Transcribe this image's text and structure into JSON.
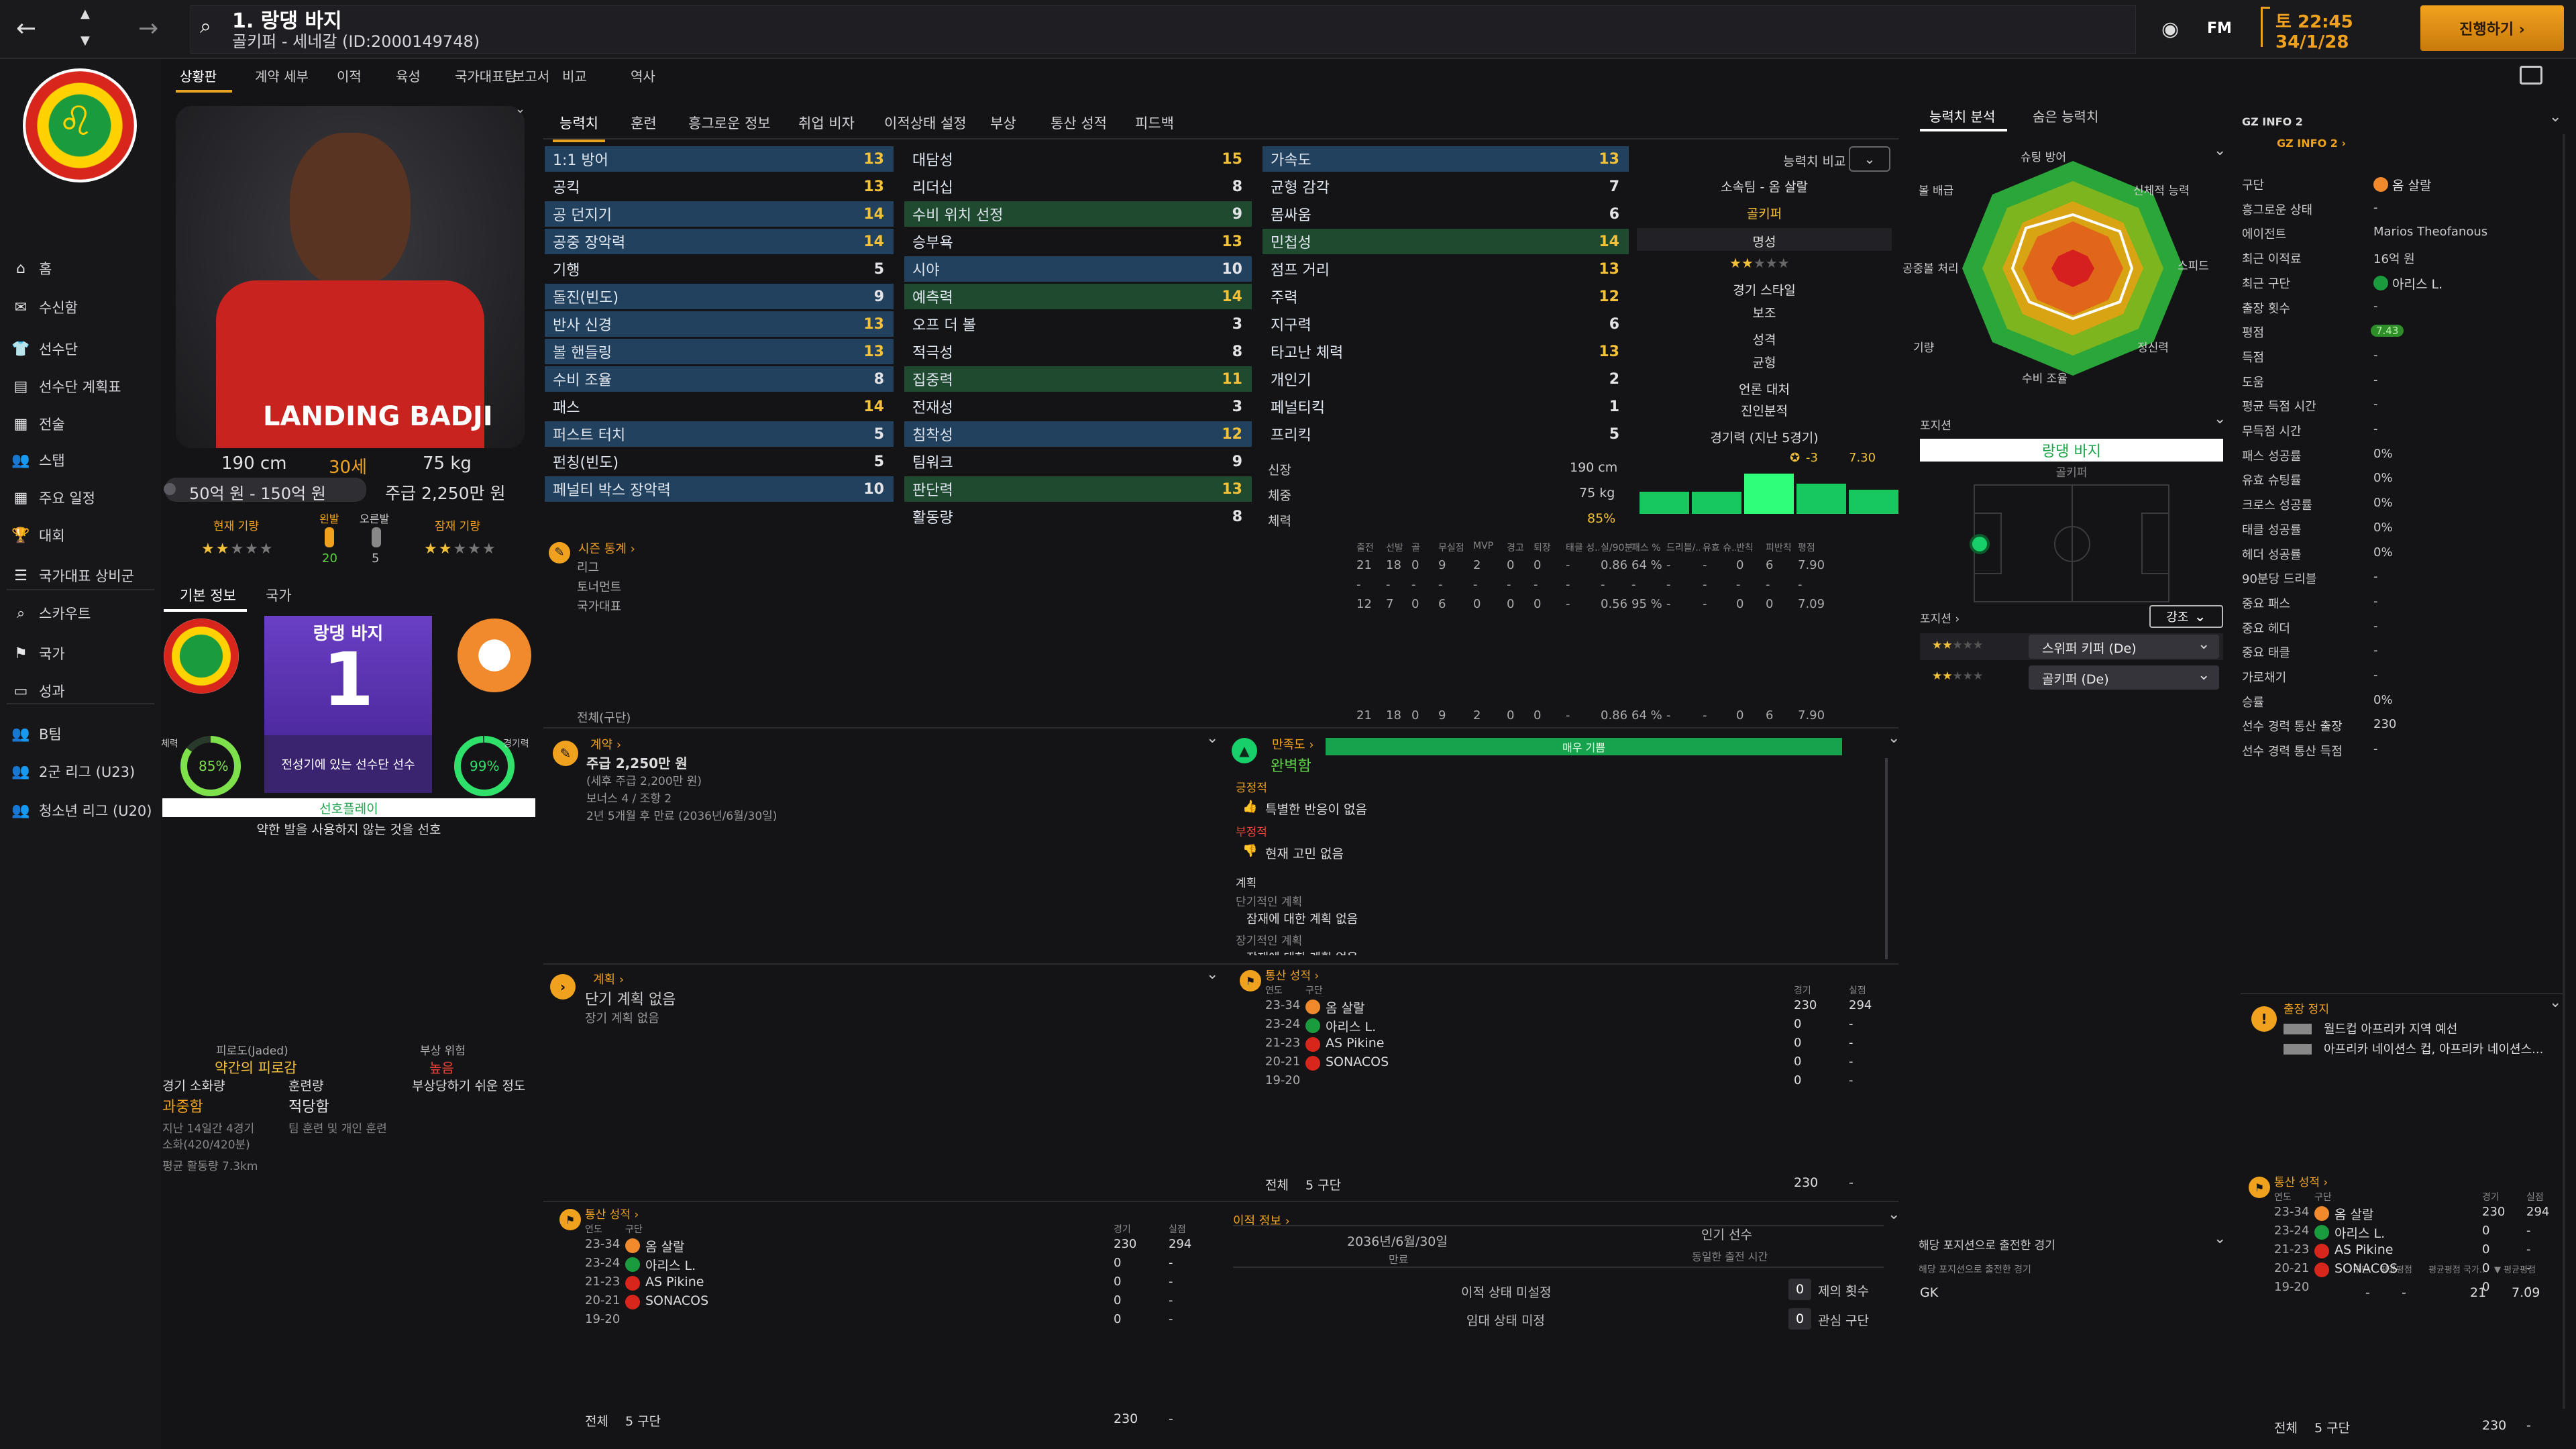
{
  "window": {
    "title": "1. 랑댕 바지",
    "subtitle": "골키퍼 - 세네갈 (ID:2000149748)",
    "date": "토 22:45",
    "date2": "34/1/28",
    "continue_label": "진행하기 ›",
    "fm": "FM"
  },
  "sidebar": {
    "items": [
      {
        "label": "홈",
        "icon": "home-icon"
      },
      {
        "label": "수신함",
        "icon": "inbox-icon"
      },
      {
        "label": "선수단",
        "icon": "shirt-icon"
      },
      {
        "label": "선수단 계획표",
        "icon": "clipboard-icon"
      },
      {
        "label": "전술",
        "icon": "tactics-icon"
      },
      {
        "label": "스탭",
        "icon": "staff-icon"
      },
      {
        "label": "주요 일정",
        "icon": "calendar-icon"
      },
      {
        "label": "대회",
        "icon": "trophy-icon"
      },
      {
        "label": "국가대표 상비군",
        "icon": "list-icon"
      },
      {
        "label": "스카우트",
        "icon": "search-icon"
      },
      {
        "label": "국가",
        "icon": "flag-icon"
      },
      {
        "label": "성과",
        "icon": "bag-icon"
      },
      {
        "label": "B팀",
        "icon": "people-icon"
      },
      {
        "label": "2군 리그 (U23)",
        "icon": "people-icon"
      },
      {
        "label": "청소년 리그 (U20)",
        "icon": "people-icon"
      }
    ]
  },
  "submenu": [
    "상황판",
    "계약 세부",
    "이적",
    "육성",
    "국가대표팀",
    "보고서",
    "비교",
    "역사"
  ],
  "tabs": [
    "능력치",
    "훈련",
    "흥그로운 정보",
    "취업 비자",
    "이적상태 설정",
    "부상",
    "통산 성적",
    "피드백"
  ],
  "player": {
    "height": "190 cm",
    "age": "30세",
    "weight": "75 kg",
    "value": "50억 원 - 150억 원",
    "wage": "주급 2,250만 원",
    "ability_label": "현재 기량",
    "potential_label": "잠재 기량",
    "foot_left": "왼발",
    "foot_right": "오른발",
    "left_val": "20",
    "right_val": "5",
    "shirt_name": "LANDING BADJI"
  },
  "info_tabs": [
    "기본 정보",
    "국가"
  ],
  "shirt": {
    "name": "랑댕 바지",
    "number": "1",
    "status": "전성기에 있는 선수단 선수"
  },
  "rings": {
    "left_label": "체력",
    "left_val": "85%",
    "right_label": "경기력",
    "right_val": "99%"
  },
  "selection": {
    "label": "선호플레이",
    "desc": "약한 발을 사용하지 않는 것을 선호"
  },
  "fitness": {
    "fatigue_label": "피로도(Jaded)",
    "fatigue_val": "약간의 피로감",
    "injury_label": "부상 위험",
    "injury_val": "높음",
    "injury_desc": "부상당하기 쉬운 정도",
    "load_label": "경기 소화량",
    "load_val": "과중함",
    "training_label": "훈련량",
    "training_val": "적당함",
    "load_desc1": "지난 14일간 4경기",
    "load_desc2": "소화(420/420분)",
    "training_desc": "팀 훈련 및 개인 훈련",
    "run_desc": "평균 활동량 7.3km"
  },
  "attr_col1": [
    {
      "n": "1:1 방어",
      "v": "13",
      "c": "val-y",
      "h": "hl"
    },
    {
      "n": "공킥",
      "v": "13",
      "c": "val-y",
      "h": ""
    },
    {
      "n": "공 던지기",
      "v": "14",
      "c": "val-y",
      "h": "hl"
    },
    {
      "n": "공중 장악력",
      "v": "14",
      "c": "val-y",
      "h": "hl"
    },
    {
      "n": "기행",
      "v": "5",
      "c": "val-w",
      "h": ""
    },
    {
      "n": "돌진(빈도)",
      "v": "9",
      "c": "val-w",
      "h": "hl"
    },
    {
      "n": "반사 신경",
      "v": "13",
      "c": "val-y",
      "h": "hl"
    },
    {
      "n": "볼 핸들링",
      "v": "13",
      "c": "val-y",
      "h": "hl"
    },
    {
      "n": "수비 조율",
      "v": "8",
      "c": "val-w",
      "h": "hl"
    },
    {
      "n": "패스",
      "v": "14",
      "c": "val-y",
      "h": ""
    },
    {
      "n": "퍼스트 터치",
      "v": "5",
      "c": "val-w",
      "h": "hl"
    },
    {
      "n": "펀칭(빈도)",
      "v": "5",
      "c": "val-w",
      "h": ""
    },
    {
      "n": "페널티 박스 장악력",
      "v": "10",
      "c": "val-w",
      "h": "hl"
    }
  ],
  "attr_col2": [
    {
      "n": "대담성",
      "v": "15",
      "c": "val-y",
      "h": ""
    },
    {
      "n": "리더십",
      "v": "8",
      "c": "val-w",
      "h": ""
    },
    {
      "n": "수비 위치 선정",
      "v": "9",
      "c": "val-w",
      "h": "hlg"
    },
    {
      "n": "승부욕",
      "v": "13",
      "c": "val-y",
      "h": ""
    },
    {
      "n": "시야",
      "v": "10",
      "c": "val-w",
      "h": "hl"
    },
    {
      "n": "예측력",
      "v": "14",
      "c": "val-y",
      "h": "hlg"
    },
    {
      "n": "오프 더 볼",
      "v": "3",
      "c": "val-w",
      "h": ""
    },
    {
      "n": "적극성",
      "v": "8",
      "c": "val-w",
      "h": ""
    },
    {
      "n": "집중력",
      "v": "11",
      "c": "val-y",
      "h": "hlg"
    },
    {
      "n": "전재성",
      "v": "3",
      "c": "val-w",
      "h": ""
    },
    {
      "n": "침착성",
      "v": "12",
      "c": "val-y",
      "h": "hl"
    },
    {
      "n": "팀워크",
      "v": "9",
      "c": "val-w",
      "h": ""
    },
    {
      "n": "판단력",
      "v": "13",
      "c": "val-y",
      "h": "hlg"
    },
    {
      "n": "활동량",
      "v": "8",
      "c": "val-w",
      "h": ""
    }
  ],
  "attr_col3": [
    {
      "n": "가속도",
      "v": "13",
      "c": "val-y",
      "h": "hl"
    },
    {
      "n": "균형 감각",
      "v": "7",
      "c": "val-w",
      "h": ""
    },
    {
      "n": "몸싸움",
      "v": "6",
      "c": "val-w",
      "h": ""
    },
    {
      "n": "민첩성",
      "v": "14",
      "c": "val-y",
      "h": "hlg"
    },
    {
      "n": "점프 거리",
      "v": "13",
      "c": "val-y",
      "h": ""
    },
    {
      "n": "주력",
      "v": "12",
      "c": "val-y",
      "h": ""
    },
    {
      "n": "지구력",
      "v": "6",
      "c": "val-w",
      "h": ""
    },
    {
      "n": "타고난 체력",
      "v": "13",
      "c": "val-y",
      "h": ""
    },
    {
      "n": "개인기",
      "v": "2",
      "c": "val-w",
      "h": ""
    },
    {
      "n": "페널티킥",
      "v": "1",
      "c": "val-w",
      "h": ""
    },
    {
      "n": "프리킥",
      "v": "5",
      "c": "val-w",
      "h": ""
    }
  ],
  "physical": {
    "h_label": "신장",
    "h_val": "190 cm",
    "w_label": "체중",
    "w_val": "75 kg",
    "c_label": "체력",
    "c_val": "85%"
  },
  "compare": {
    "label": "능력치 비교",
    "club_label": "소속팀 - 옴 살랄",
    "position": "골키퍼",
    "fame": "명성",
    "style_label": "경기 스타일",
    "style_val": "보조",
    "personality_label": "성격",
    "personality_val": "균형",
    "media_label": "언론 대처",
    "media_val": "진인분적",
    "form_label": "경기력 (지난 5경기)",
    "form_diff": "-3",
    "form_rating": "7.30",
    "form_values": [
      0.55,
      0.55,
      1.0,
      0.75,
      0.6
    ]
  },
  "season_stats": {
    "title": "시즌 통계 ›",
    "headers": [
      "출전",
      "선발",
      "골",
      "무실점",
      "MVP",
      "경고",
      "퇴장",
      "태클 성..",
      "실/90분",
      "패스 %",
      "드리블/..",
      "유효 슈...",
      "반칙",
      "피반칙",
      "평점"
    ],
    "rows": [
      {
        "name": "리그",
        "vals": [
          "21",
          "18",
          "0",
          "9",
          "2",
          "0",
          "0",
          "-",
          "0.86",
          "64 %",
          "-",
          "-",
          "0",
          "6",
          "7.90"
        ]
      },
      {
        "name": "토너먼트",
        "vals": [
          "-",
          "-",
          "-",
          "-",
          "-",
          "-",
          "-",
          "-",
          "-",
          "-",
          "-",
          "-",
          "-",
          "-",
          "-"
        ]
      },
      {
        "name": "국가대표",
        "vals": [
          "12",
          "7",
          "0",
          "6",
          "0",
          "0",
          "0",
          "-",
          "0.56",
          "95 %",
          "-",
          "-",
          "0",
          "0",
          "7.09"
        ]
      }
    ],
    "total_label": "전체(구단)",
    "total": [
      "21",
      "18",
      "0",
      "9",
      "2",
      "0",
      "0",
      "-",
      "0.86",
      "64 %",
      "-",
      "-",
      "0",
      "6",
      "7.90"
    ]
  },
  "contract": {
    "title": "계약 ›",
    "wage": "주급 2,250만 원",
    "wage_sub": "(세후 주급 2,200만 원)",
    "bonus": "보너스 4 / 조항 2",
    "expiry": "2년 5개월 후 만료 (2036년/6월/30일)"
  },
  "happiness": {
    "title": "만족도 ›",
    "val": "완벽함",
    "bar_label": "매우 기쁨",
    "pos_label": "긍정적",
    "pos_val": "특별한 반응이 없음",
    "neg_label": "부정적",
    "neg_val": "현재 고민 없음",
    "plan_label": "계획",
    "short_label": "단기적인 계획",
    "short_val": "잠재에 대한 계획 없음",
    "long_label": "장기적인 계획",
    "long_val": "잠재에 대한 계획 없음"
  },
  "plan": {
    "title": "계획 ›",
    "short": "단기 계획 없음",
    "long": "장기 계획 없음"
  },
  "career": {
    "title": "통산 성적 ›",
    "headers": [
      "연도",
      "구단",
      "경기",
      "실점"
    ],
    "rows": [
      {
        "y": "23-34",
        "club": "옴 살랄",
        "apps": "230",
        "gls": "294"
      },
      {
        "y": "23-24",
        "club": "아리스 L.",
        "apps": "0",
        "gls": "-"
      },
      {
        "y": "21-23",
        "club": "AS Pikine",
        "apps": "0",
        "gls": "-"
      },
      {
        "y": "20-21",
        "club": "SONACOS",
        "apps": "0",
        "gls": "-"
      },
      {
        "y": "19-20",
        "club": "",
        "apps": "0",
        "gls": "-"
      }
    ],
    "total_label": "전체",
    "total_clubs": "5 구단",
    "total_apps": "230",
    "total_gls": "-"
  },
  "transfer": {
    "title": "이적 정보 ›",
    "date": "2036년/6월/30일",
    "date_label": "만료",
    "fav_label": "인기 선수",
    "fav_sub": "동일한 출전 시간",
    "status1": "이적 상태 미설정",
    "status2": "임대 상태 미정",
    "offers_label": "제의 횟수",
    "offers": "0",
    "interest_label": "관심 구단",
    "interest": "0"
  },
  "analysis": {
    "tabs": [
      "능력치 분석",
      "숨은 능력치"
    ],
    "labels": [
      "슈팅 방어",
      "신체적 능력",
      "스피드",
      "정신력",
      "수비 조율",
      "기량",
      "공중볼 처리",
      "볼 배급"
    ]
  },
  "position": {
    "label": "포지션",
    "name": "랑댕 바지",
    "role": "골키퍼",
    "pos_label": "포지션 ›",
    "emph": "강조",
    "role1": "스위퍼 키퍼 (De)",
    "role2": "골키퍼 (De)"
  },
  "pos_apps": {
    "title": "해당 포지션으로 출전한 경기",
    "sub": "해당 포지션으로 출전한 경기",
    "headers": [
      "구단",
      "평균평점",
      "평균평점 국가..",
      "▼ 평균평점"
    ],
    "row": {
      "pos": "GK",
      "a": "-",
      "b": "-",
      "c": "21",
      "d": "7.09"
    }
  },
  "gzinfo": {
    "title": "GZ INFO 2",
    "sub": "GZ INFO 2 ›",
    "rows": [
      {
        "k": "구단",
        "v": "옴 살랄"
      },
      {
        "k": "흥그로운 상태",
        "v": "-"
      },
      {
        "k": "에이전트",
        "v": "Marios Theofanous"
      },
      {
        "k": "최근 이적료",
        "v": "16억 원"
      },
      {
        "k": "최근 구단",
        "v": "아리스 L."
      },
      {
        "k": "출장 횟수",
        "v": "-"
      },
      {
        "k": "평점",
        "v": "7.43"
      },
      {
        "k": "득점",
        "v": "-"
      },
      {
        "k": "도움",
        "v": "-"
      },
      {
        "k": "평균 득점 시간",
        "v": "-"
      },
      {
        "k": "무득점 시간",
        "v": "-"
      },
      {
        "k": "패스 성공률",
        "v": "0%"
      },
      {
        "k": "유효 슈팅률",
        "v": "0%"
      },
      {
        "k": "크로스 성공률",
        "v": "0%"
      },
      {
        "k": "태클 성공률",
        "v": "0%"
      },
      {
        "k": "헤더 성공률",
        "v": "0%"
      },
      {
        "k": "90분당 드리블",
        "v": "-"
      },
      {
        "k": "중요 패스",
        "v": "-"
      },
      {
        "k": "중요 헤더",
        "v": "-"
      },
      {
        "k": "중요 태클",
        "v": "-"
      },
      {
        "k": "가로채기",
        "v": "-"
      },
      {
        "k": "승률",
        "v": "0%"
      },
      {
        "k": "선수 경력 통산 출장",
        "v": "230"
      },
      {
        "k": "선수 경력 통산 득점",
        "v": "-"
      }
    ]
  },
  "suspension": {
    "title": "출장 정지",
    "r1": "월드컵 아프리카 지역 예선",
    "r2": "아프리카 네이션스 컵, 아프리카 네이션스..."
  },
  "colors": {
    "accent": "#f0a21e",
    "green": "#17d06a",
    "blue_row": "#21415e",
    "green_row": "#1f4a2f"
  }
}
